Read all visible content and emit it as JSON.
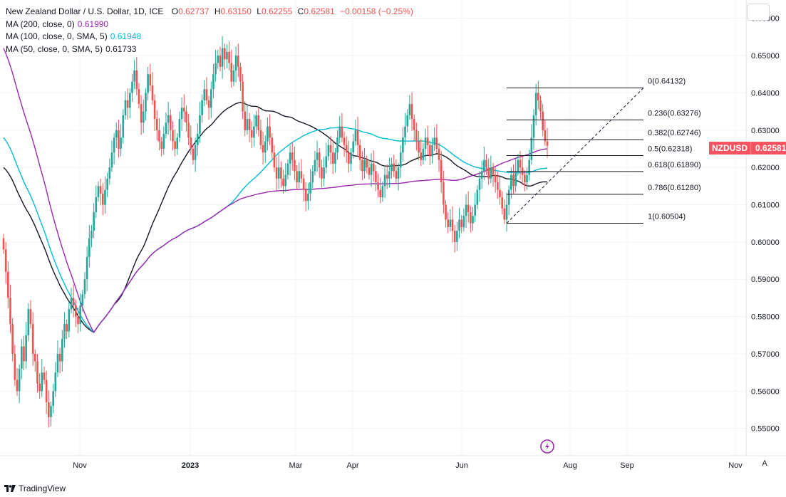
{
  "legend": {
    "title": "New Zealand Dollar / U.S. Dollar, 1D, ICE",
    "ohlc": {
      "o_label": "O",
      "o": "0.62737",
      "h_label": "H",
      "h": "0.63150",
      "l_label": "L",
      "l": "0.62255",
      "c_label": "C",
      "c": "0.62581",
      "chg": "−0.00158 (−0.25%)"
    },
    "ma200": {
      "label": "MA (200, close, 0)",
      "value": "0.61990",
      "color": "#9c27b0"
    },
    "ma100": {
      "label": "MA (100, close, 0, SMA, 5)",
      "value": "0.61948",
      "color": "#00bcd4"
    },
    "ma50": {
      "label": "MA (50, close, 0, SMA, 5)",
      "value": "0.61733",
      "color": "#131722"
    }
  },
  "price_badge": {
    "symbol": "NZDUSD",
    "price": "0.62581"
  },
  "footer": {
    "brand": "TradingView"
  },
  "auto_label": "A",
  "colors": {
    "up": "#26a69a",
    "down": "#ef5350",
    "grid": "#f0f3fa",
    "axis_text": "#131722"
  },
  "chart_data": {
    "type": "candlestick",
    "y_ticks": [
      "0.66000",
      "0.65000",
      "0.64000",
      "0.63000",
      "0.62000",
      "0.61000",
      "0.60000",
      "0.59000",
      "0.58000",
      "0.57000",
      "0.56000",
      "0.55000"
    ],
    "ylim": [
      0.5465,
      0.663
    ],
    "x_ticks": [
      "Nov",
      "2023",
      "Mar",
      "Apr",
      "Jun",
      "Aug",
      "Sep",
      "Nov"
    ],
    "fib_levels": [
      {
        "label": "0(0.64132)",
        "value": 0.64132
      },
      {
        "label": "0.236(0.63276)",
        "value": 0.63276
      },
      {
        "label": "0.382(0.62746)",
        "value": 0.62746
      },
      {
        "label": "0.5(0.62318)",
        "value": 0.62318
      },
      {
        "label": "0.618(0.61890)",
        "value": 0.6189
      },
      {
        "label": "0.786(0.61280)",
        "value": 0.6128
      },
      {
        "label": "1(0.60504)",
        "value": 0.60504
      }
    ],
    "closes": [
      0.598,
      0.592,
      0.585,
      0.578,
      0.57,
      0.563,
      0.56,
      0.566,
      0.572,
      0.568,
      0.575,
      0.582,
      0.578,
      0.57,
      0.568,
      0.562,
      0.56,
      0.565,
      0.563,
      0.557,
      0.553,
      0.556,
      0.56,
      0.565,
      0.57,
      0.568,
      0.574,
      0.578,
      0.576,
      0.582,
      0.585,
      0.583,
      0.58,
      0.578,
      0.583,
      0.586,
      0.59,
      0.596,
      0.601,
      0.603,
      0.608,
      0.612,
      0.615,
      0.613,
      0.61,
      0.614,
      0.617,
      0.62,
      0.624,
      0.628,
      0.63,
      0.625,
      0.628,
      0.634,
      0.638,
      0.636,
      0.64,
      0.643,
      0.646,
      0.641,
      0.637,
      0.632,
      0.635,
      0.64,
      0.645,
      0.642,
      0.638,
      0.633,
      0.63,
      0.627,
      0.625,
      0.629,
      0.632,
      0.634,
      0.63,
      0.627,
      0.625,
      0.628,
      0.633,
      0.636,
      0.635,
      0.632,
      0.628,
      0.625,
      0.622,
      0.626,
      0.629,
      0.634,
      0.638,
      0.641,
      0.638,
      0.636,
      0.641,
      0.645,
      0.648,
      0.65,
      0.647,
      0.652,
      0.649,
      0.651,
      0.648,
      0.643,
      0.646,
      0.65,
      0.647,
      0.643,
      0.635,
      0.63,
      0.633,
      0.63,
      0.628,
      0.631,
      0.634,
      0.63,
      0.626,
      0.624,
      0.627,
      0.631,
      0.628,
      0.624,
      0.62,
      0.617,
      0.62,
      0.617,
      0.615,
      0.618,
      0.621,
      0.624,
      0.622,
      0.619,
      0.616,
      0.619,
      0.617,
      0.614,
      0.611,
      0.613,
      0.616,
      0.619,
      0.622,
      0.624,
      0.62,
      0.617,
      0.62,
      0.623,
      0.626,
      0.624,
      0.621,
      0.624,
      0.628,
      0.631,
      0.628,
      0.626,
      0.624,
      0.621,
      0.624,
      0.627,
      0.63,
      0.626,
      0.622,
      0.619,
      0.622,
      0.62,
      0.618,
      0.621,
      0.619,
      0.616,
      0.614,
      0.612,
      0.615,
      0.618,
      0.617,
      0.619,
      0.621,
      0.619,
      0.617,
      0.62,
      0.624,
      0.628,
      0.631,
      0.634,
      0.637,
      0.633,
      0.63,
      0.627,
      0.624,
      0.622,
      0.625,
      0.628,
      0.626,
      0.623,
      0.626,
      0.628,
      0.625,
      0.622,
      0.616,
      0.61,
      0.606,
      0.604,
      0.606,
      0.603,
      0.6,
      0.603,
      0.606,
      0.604,
      0.607,
      0.61,
      0.608,
      0.605,
      0.607,
      0.61,
      0.614,
      0.617,
      0.619,
      0.622,
      0.62,
      0.617,
      0.62,
      0.618,
      0.616,
      0.614,
      0.612,
      0.609,
      0.606,
      0.61,
      0.614,
      0.618,
      0.615,
      0.619,
      0.622,
      0.62,
      0.618,
      0.616,
      0.618,
      0.622,
      0.628,
      0.634,
      0.64,
      0.638,
      0.635,
      0.63,
      0.627,
      0.6258
    ]
  }
}
